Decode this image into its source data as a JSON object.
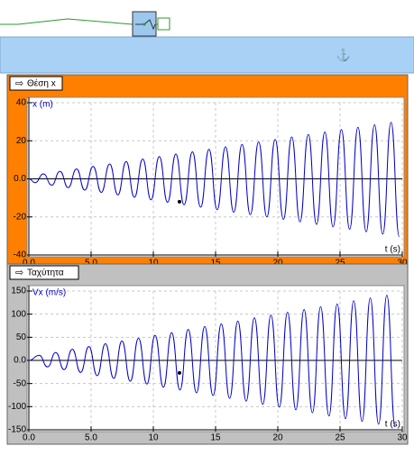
{
  "chart_data": [
    {
      "type": "line",
      "title": "Θέση x",
      "y_label": "x (m)",
      "x_label": "t (s)",
      "panel_color": "#ff8000",
      "xlim": [
        0,
        30
      ],
      "xticks": [
        {
          "value": 0,
          "label": "0.0"
        },
        {
          "value": 5,
          "label": "5.0"
        },
        10,
        15,
        20,
        25,
        30
      ],
      "ylim": [
        -40,
        40
      ],
      "yticks": [
        40,
        20,
        {
          "value": 0,
          "label": "0.0"
        },
        -20,
        -40
      ],
      "grid": true,
      "series": [
        {
          "name": "x",
          "color": "#0000c8",
          "x": [
            0,
            0.5,
            1.17,
            1.83,
            2.5,
            3.16,
            3.83,
            4.49,
            5.16,
            5.82,
            6.49,
            7.15,
            7.82,
            8.48,
            9.15,
            9.81,
            10.48,
            11.14,
            11.81,
            12.47,
            13.14,
            13.8,
            14.47,
            15.13,
            15.8,
            16.46,
            17.13,
            17.79,
            18.46,
            19.12,
            19.79,
            20.45,
            21.12,
            21.78,
            22.45,
            23.11,
            23.78,
            24.44,
            25.11,
            25.77,
            26.44,
            27.1,
            27.77,
            28.43,
            29.1,
            29.76
          ],
          "values": [
            0,
            -2.0,
            2.6,
            -3.3,
            3.9,
            -4.6,
            5.2,
            -5.9,
            6.5,
            -7.1,
            7.8,
            -8.4,
            9.1,
            -9.7,
            10.4,
            -11.0,
            11.7,
            -12.3,
            13.0,
            -13.6,
            14.2,
            -14.9,
            15.5,
            -16.2,
            16.8,
            -17.5,
            18.1,
            -18.8,
            19.4,
            -20.0,
            20.7,
            -21.3,
            22.0,
            -22.6,
            23.3,
            -23.9,
            24.6,
            -25.2,
            25.9,
            -26.5,
            27.1,
            -27.8,
            28.4,
            -29.1,
            29.7,
            -30.4
          ]
        }
      ],
      "marker": {
        "x": 12.1,
        "y": -12
      }
    },
    {
      "type": "line",
      "title": "Ταχύτητα",
      "y_label": "Vx (m/s)",
      "x_label": "t (s)",
      "panel_color": "#c0c0c0",
      "xlim": [
        0,
        30
      ],
      "xticks": [
        {
          "value": 0,
          "label": "0.0"
        },
        {
          "value": 5,
          "label": "5.0"
        },
        10,
        15,
        20,
        25,
        30
      ],
      "ylim": [
        -150,
        150
      ],
      "yticks": [
        150,
        100,
        50,
        {
          "value": 0,
          "label": "0.0"
        },
        -50,
        -100,
        -150
      ],
      "grid": true,
      "series": [
        {
          "name": "Vx",
          "color": "#0000c8",
          "x": [
            0,
            0.83,
            1.5,
            2.16,
            2.83,
            3.49,
            4.16,
            4.82,
            5.49,
            6.15,
            6.82,
            7.48,
            8.15,
            8.81,
            9.48,
            10.14,
            10.81,
            11.47,
            12.14,
            12.8,
            13.47,
            14.13,
            14.8,
            15.46,
            16.13,
            16.79,
            17.46,
            18.12,
            18.79,
            19.45,
            20.12,
            20.78,
            21.45,
            22.11,
            22.78,
            23.44,
            24.11,
            24.77,
            25.44,
            26.1,
            26.77,
            27.43,
            28.1,
            28.76,
            29.43
          ],
          "values": [
            0,
            11,
            -14,
            17,
            -20,
            24,
            -26,
            30,
            -33,
            36,
            -39,
            42,
            -45,
            48,
            -51,
            54,
            -58,
            60,
            -64,
            67,
            -70,
            73,
            -76,
            79,
            -82,
            85,
            -88,
            92,
            -95,
            98,
            -101,
            104,
            -107,
            110,
            -113,
            116,
            -120,
            122,
            -126,
            129,
            -132,
            135,
            -138,
            141,
            -144
          ]
        }
      ],
      "marker": {
        "x": 12.1,
        "y": -27
      }
    }
  ]
}
